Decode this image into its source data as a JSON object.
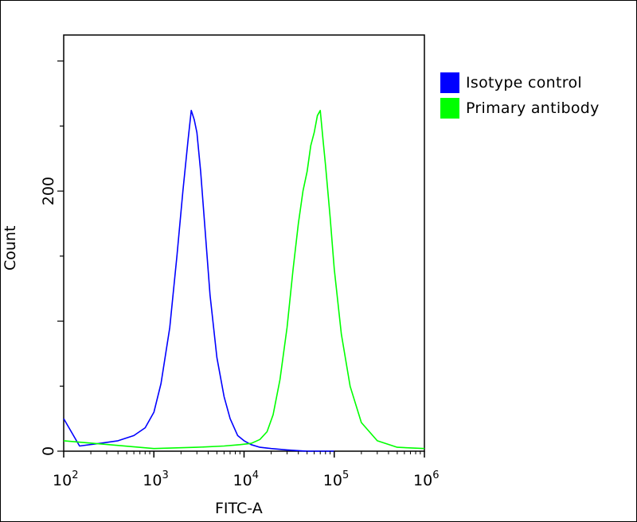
{
  "chart_data": {
    "type": "line",
    "x_scale": "log",
    "xlim": [
      100,
      1000000
    ],
    "ylim": [
      0,
      320
    ],
    "xlabel": "FITC-A",
    "ylabel": "Count",
    "x_ticks": [
      {
        "value": 100,
        "base": "10",
        "exp": "2"
      },
      {
        "value": 1000,
        "base": "10",
        "exp": "3"
      },
      {
        "value": 10000,
        "base": "10",
        "exp": "4"
      },
      {
        "value": 100000,
        "base": "10",
        "exp": "5"
      },
      {
        "value": 1000000,
        "base": "10",
        "exp": "6"
      }
    ],
    "y_ticks": [
      {
        "value": 0,
        "label": "0"
      },
      {
        "value": 200,
        "label": "200"
      }
    ],
    "grid": false,
    "legend_position": "top-right",
    "series": [
      {
        "name": "Isotype control",
        "color": "#0000ff",
        "x": [
          100,
          150,
          250,
          400,
          600,
          800,
          1000,
          1200,
          1500,
          1800,
          2100,
          2400,
          2600,
          2800,
          3000,
          3300,
          3700,
          4200,
          5000,
          6000,
          7000,
          8500,
          10000,
          12000,
          15000,
          20000,
          30000,
          50000,
          100000
        ],
        "y": [
          25,
          4,
          6,
          8,
          12,
          18,
          30,
          52,
          95,
          150,
          200,
          240,
          262,
          255,
          245,
          215,
          170,
          120,
          72,
          42,
          25,
          12,
          8,
          5,
          3,
          2,
          1,
          0,
          0
        ]
      },
      {
        "name": "Primary antibody",
        "color": "#00ff00",
        "x": [
          100,
          1000,
          3000,
          6000,
          9000,
          12000,
          15000,
          18000,
          21000,
          25000,
          30000,
          35000,
          40000,
          45000,
          50000,
          55000,
          60000,
          65000,
          70000,
          75000,
          80000,
          90000,
          100000,
          120000,
          150000,
          200000,
          300000,
          500000,
          1000000
        ],
        "y": [
          8,
          2,
          3,
          4,
          5,
          6,
          9,
          15,
          28,
          55,
          95,
          140,
          175,
          200,
          215,
          235,
          245,
          258,
          262,
          240,
          220,
          180,
          140,
          90,
          50,
          22,
          8,
          3,
          2
        ]
      }
    ]
  }
}
